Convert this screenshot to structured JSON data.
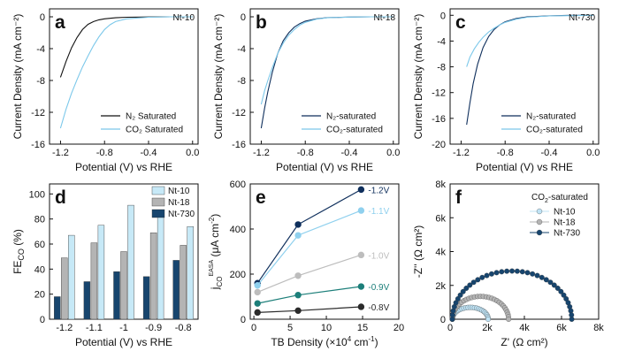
{
  "colors": {
    "black": "#111111",
    "lightblue": "#7cc8ea",
    "nt10": "#c7e9f7",
    "nt18": "#b4b4b4",
    "nt730": "#17456e",
    "lvl_12": "#0f2f5c",
    "lvl_11": "#8fd0ee",
    "lvl_10": "#bdbdbd",
    "lvl_09": "#1d7f7a",
    "lvl_08": "#2b2b2b"
  },
  "chart_data": [
    {
      "id": "a",
      "type": "line",
      "letter": "a",
      "tag": "Nt-10",
      "xlabel": "Potential (V) vs RHE",
      "ylabel": "Current Density (mA cm⁻²)",
      "xlim": [
        -1.3,
        0.05
      ],
      "ylim": [
        -16,
        1
      ],
      "xticks": [
        -1.2,
        -0.8,
        -0.4,
        0.0
      ],
      "xtick_labels": [
        "-1.2",
        "-0.8",
        "-0.4",
        "0.0"
      ],
      "yticks": [
        0,
        -4,
        -8,
        -12,
        -16
      ],
      "ytick_labels": [
        "0",
        "-4",
        "-8",
        "-12",
        "-16"
      ],
      "series": [
        {
          "name": "N₂ Saturated",
          "color": "#111111",
          "x": [
            -1.2,
            -1.15,
            -1.1,
            -1.05,
            -1.0,
            -0.95,
            -0.9,
            -0.85,
            -0.8,
            -0.7,
            -0.6,
            -0.4,
            -0.2,
            0.0
          ],
          "y": [
            -7.6,
            -5.6,
            -3.9,
            -2.6,
            -1.6,
            -0.95,
            -0.6,
            -0.38,
            -0.25,
            -0.12,
            -0.06,
            -0.02,
            0.0,
            0.0
          ]
        },
        {
          "name": "CO₂ Saturated",
          "color": "#7cc8ea",
          "x": [
            -1.2,
            -1.15,
            -1.1,
            -1.05,
            -1.0,
            -0.95,
            -0.9,
            -0.85,
            -0.8,
            -0.75,
            -0.7,
            -0.6,
            -0.4,
            -0.2,
            0.0
          ],
          "y": [
            -14.0,
            -11.6,
            -9.6,
            -7.9,
            -6.3,
            -4.9,
            -3.6,
            -2.5,
            -1.6,
            -1.0,
            -0.6,
            -0.25,
            -0.06,
            0.0,
            0.0
          ]
        }
      ],
      "legend": [
        {
          "name": "N₂ Saturated",
          "color": "#111111"
        },
        {
          "name": "CO₂ Saturated",
          "color": "#7cc8ea"
        }
      ]
    },
    {
      "id": "b",
      "type": "line",
      "letter": "b",
      "tag": "Nt-18",
      "xlabel": "Potential (V) vs RHE",
      "ylabel": "Current Density (mA cm⁻²)",
      "xlim": [
        -1.3,
        0.05
      ],
      "ylim": [
        -16,
        1
      ],
      "xticks": [
        -1.2,
        -0.8,
        -0.4,
        0.0
      ],
      "xtick_labels": [
        "-1.2",
        "-0.8",
        "-0.4",
        "0.0"
      ],
      "yticks": [
        0,
        -4,
        -8,
        -12,
        -16
      ],
      "ytick_labels": [
        "0",
        "-4",
        "-8",
        "-12",
        "-16"
      ],
      "series": [
        {
          "name": "N₂-saturated",
          "color": "#0f2f5c",
          "x": [
            -1.2,
            -1.17,
            -1.14,
            -1.1,
            -1.05,
            -1.0,
            -0.95,
            -0.9,
            -0.85,
            -0.8,
            -0.7,
            -0.6,
            -0.4,
            -0.2,
            0.0
          ],
          "y": [
            -14.0,
            -11.5,
            -9.4,
            -7.0,
            -4.6,
            -3.0,
            -2.0,
            -1.3,
            -0.85,
            -0.55,
            -0.25,
            -0.1,
            -0.03,
            0.0,
            0.0
          ]
        },
        {
          "name": "CO₂-saturated",
          "color": "#7cc8ea",
          "x": [
            -1.2,
            -1.17,
            -1.14,
            -1.1,
            -1.05,
            -1.0,
            -0.95,
            -0.9,
            -0.85,
            -0.8,
            -0.7,
            -0.6,
            -0.4,
            -0.2,
            0.0
          ],
          "y": [
            -11.0,
            -9.3,
            -8.0,
            -6.4,
            -4.6,
            -3.3,
            -2.3,
            -1.6,
            -1.05,
            -0.7,
            -0.3,
            -0.12,
            -0.03,
            0.0,
            0.0
          ]
        }
      ],
      "legend": [
        {
          "name": "N₂-saturated",
          "color": "#0f2f5c"
        },
        {
          "name": "CO₂-saturated",
          "color": "#7cc8ea"
        }
      ]
    },
    {
      "id": "c",
      "type": "line",
      "letter": "c",
      "tag": "Nt-730",
      "xlabel": "Potential (V) vs RHE",
      "ylabel": "Current Density (mA cm⁻²)",
      "xlim": [
        -1.3,
        0.05
      ],
      "ylim": [
        -20,
        1
      ],
      "xticks": [
        -1.2,
        -0.8,
        -0.4,
        0.0
      ],
      "xtick_labels": [
        "-1.2",
        "-0.8",
        "-0.4",
        "0.0"
      ],
      "yticks": [
        0,
        -4,
        -8,
        -12,
        -16,
        -20
      ],
      "ytick_labels": [
        "0",
        "-4",
        "-8",
        "-12",
        "-16",
        "-20"
      ],
      "series": [
        {
          "name": "N₂-saturated",
          "color": "#0f2f5c",
          "x": [
            -1.15,
            -1.12,
            -1.09,
            -1.05,
            -1.0,
            -0.95,
            -0.9,
            -0.85,
            -0.8,
            -0.7,
            -0.6,
            -0.4,
            -0.2,
            0.0
          ],
          "y": [
            -17.0,
            -13.6,
            -10.6,
            -7.6,
            -5.0,
            -3.3,
            -2.2,
            -1.5,
            -1.0,
            -0.5,
            -0.25,
            -0.08,
            0.0,
            0.0
          ]
        },
        {
          "name": "CO₂-saturated",
          "color": "#7cc8ea",
          "x": [
            -1.15,
            -1.12,
            -1.08,
            -1.04,
            -1.0,
            -0.95,
            -0.9,
            -0.85,
            -0.8,
            -0.7,
            -0.6,
            -0.4,
            -0.2,
            0.0
          ],
          "y": [
            -8.0,
            -6.5,
            -5.2,
            -4.2,
            -3.4,
            -2.6,
            -2.0,
            -1.5,
            -1.1,
            -0.6,
            -0.3,
            -0.1,
            -0.05,
            0.0
          ]
        }
      ],
      "legend": [
        {
          "name": "N₂-saturated",
          "color": "#0f2f5c"
        },
        {
          "name": "CO₂-saturated",
          "color": "#7cc8ea"
        }
      ]
    },
    {
      "id": "d",
      "type": "bar",
      "letter": "d",
      "xlabel": "Potential (V) vs RHE",
      "ylabel": "FE_CO (%)",
      "categories": [
        "-1.2",
        "-1.1",
        "-1",
        "-0.9",
        "-0.8"
      ],
      "ylim": [
        0,
        108
      ],
      "yticks": [
        0,
        20,
        40,
        60,
        80,
        100
      ],
      "ytick_labels": [
        "0",
        "20",
        "40",
        "60",
        "80",
        "100"
      ],
      "series": [
        {
          "name": "Nt-730",
          "color": "#17456e",
          "values": [
            18,
            30,
            38,
            34,
            47
          ]
        },
        {
          "name": "Nt-18",
          "color": "#b4b4b4",
          "values": [
            49,
            61,
            54,
            69,
            59
          ]
        },
        {
          "name": "Nt-10",
          "color": "#c7e9f7",
          "values": [
            67,
            75,
            91,
            87,
            74
          ]
        }
      ],
      "legend": [
        {
          "name": "Nt-10",
          "color": "#c7e9f7"
        },
        {
          "name": "Nt-18",
          "color": "#b4b4b4"
        },
        {
          "name": "Nt-730",
          "color": "#17456e"
        }
      ]
    },
    {
      "id": "e",
      "type": "line",
      "letter": "e",
      "xlabel": "TB Density (×10⁴ cm⁻¹)",
      "ylabel": "j_CO^EASA (μA cm⁻²)",
      "xlim": [
        -0.5,
        20
      ],
      "ylim": [
        0,
        600
      ],
      "xticks": [
        0,
        5,
        10,
        15,
        20
      ],
      "xtick_labels": [
        "0",
        "5",
        "10",
        "15",
        "20"
      ],
      "yticks": [
        0,
        200,
        400,
        600
      ],
      "ytick_labels": [
        "0",
        "200",
        "400",
        "600"
      ],
      "x": [
        0.5,
        6.1,
        14.8
      ],
      "series": [
        {
          "name": "-1.2V",
          "color": "#0f2f5c",
          "values": [
            160,
            420,
            575
          ]
        },
        {
          "name": "-1.1V",
          "color": "#8fd0ee",
          "values": [
            150,
            372,
            482
          ]
        },
        {
          "name": "-1.0V",
          "color": "#bdbdbd",
          "values": [
            120,
            193,
            285
          ]
        },
        {
          "name": "-0.9V",
          "color": "#1d7f7a",
          "values": [
            70,
            107,
            145
          ]
        },
        {
          "name": "-0.8V",
          "color": "#2b2b2b",
          "values": [
            30,
            38,
            55
          ]
        }
      ]
    },
    {
      "id": "f",
      "type": "scatter",
      "letter": "f",
      "xlabel": "Z' (Ω cm²)",
      "ylabel": "-Z'' (Ω cm²)",
      "xlim": [
        0,
        8000
      ],
      "ylim": [
        0,
        8000
      ],
      "xticks": [
        0,
        2000,
        4000,
        6000,
        8000
      ],
      "xtick_labels": [
        "0",
        "2k",
        "4k",
        "6k",
        "8k"
      ],
      "yticks": [
        0,
        2000,
        4000,
        6000,
        8000
      ],
      "ytick_labels": [
        "0",
        "2k",
        "4k",
        "6k",
        "8k"
      ],
      "legend_title": "CO₂-saturated",
      "series": [
        {
          "name": "Nt-10",
          "color": "#bfe3f5",
          "r_start": 120,
          "r_end": 2050,
          "peak": 700,
          "n": 26
        },
        {
          "name": "Nt-18",
          "color": "#b4b4b4",
          "r_start": 120,
          "r_end": 3150,
          "peak": 1350,
          "n": 30
        },
        {
          "name": "Nt-730",
          "color": "#17456e",
          "r_start": 120,
          "r_end": 6550,
          "peak": 2850,
          "n": 36
        }
      ]
    }
  ]
}
